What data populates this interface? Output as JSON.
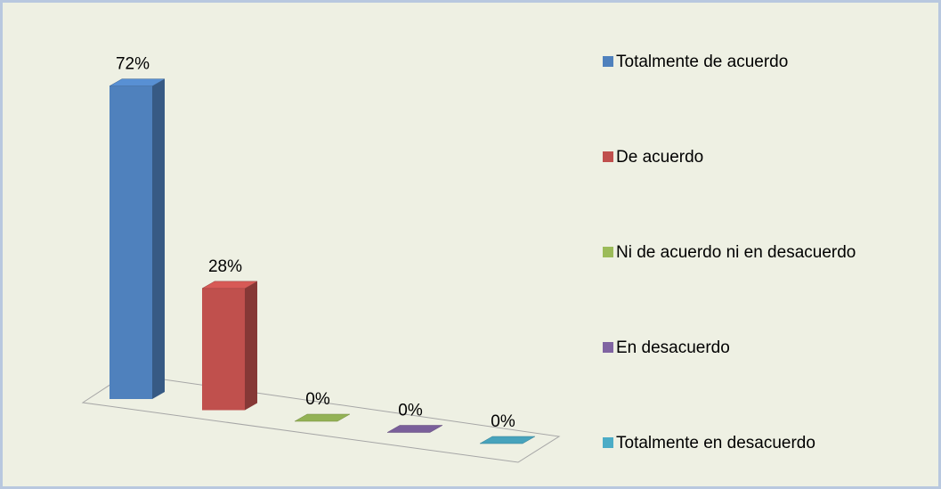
{
  "chart_data": {
    "type": "bar3d",
    "categories": [
      "Totalmente de acuerdo",
      "De acuerdo",
      "Ni de acuerdo ni en desacuerdo",
      "En desacuerdo",
      "Totalmente en desacuerdo"
    ],
    "values": [
      72,
      28,
      0,
      0,
      0
    ],
    "value_labels": [
      "72%",
      "28%",
      "0%",
      "0%",
      "0%"
    ],
    "colors": [
      "#4f81bd",
      "#c0504d",
      "#9bbb59",
      "#8064a2",
      "#4bacc6"
    ],
    "legend": "right"
  }
}
